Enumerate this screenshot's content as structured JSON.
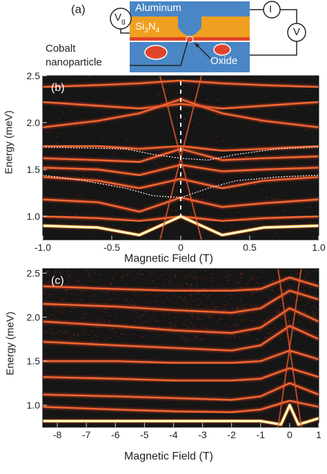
{
  "panel_a": {
    "label": "(a)",
    "aluminum": "Aluminum",
    "si3n4_main": "Si",
    "si3n4_sub3": "3",
    "si3n4_n": "N",
    "si3n4_sub4": "4",
    "vg": "V",
    "vg_sub": "g",
    "current": "I",
    "voltage": "V",
    "cobalt_line1": "Cobalt",
    "cobalt_line2": "nanoparticle",
    "oxide": "Oxide",
    "colors": {
      "aluminum_blue": "#4a86c5",
      "nitride_orange": "#f0a020",
      "particle_red": "#e0452a"
    }
  },
  "chart_data": [
    {
      "type": "heatmap",
      "panel_label": "(b)",
      "xlabel": "Magnetic Field (T)",
      "ylabel": "Energy (meV)",
      "xlim": [
        -1.0,
        1.0
      ],
      "ylim": [
        0.75,
        2.5
      ],
      "x_ticks": [
        "-1.0",
        "-0.5",
        "0",
        "0.5",
        "1.0"
      ],
      "x_tick_values": [
        -1.0,
        -0.5,
        0,
        0.5,
        1.0
      ],
      "y_ticks": [
        "1.0",
        "1.5",
        "2.0",
        "2.5"
      ],
      "y_tick_values": [
        1.0,
        1.5,
        2.0,
        2.5
      ],
      "grid": false,
      "colormap": [
        "#151515",
        "#b0301a",
        "#f06030",
        "#ffe060",
        "#ffffff"
      ],
      "levels": [
        {
          "x": [
            -1.0,
            -0.6,
            -0.3,
            0.0,
            0.3,
            0.6,
            1.0
          ],
          "y": [
            2.38,
            2.4,
            2.42,
            2.45,
            2.42,
            2.4,
            2.38
          ]
        },
        {
          "x": [
            -1.0,
            -0.6,
            -0.3,
            0.0,
            0.3,
            0.6,
            1.0
          ],
          "y": [
            2.22,
            2.18,
            2.15,
            2.2,
            2.15,
            2.18,
            2.22
          ]
        },
        {
          "x": [
            -1.0,
            -0.6,
            -0.3,
            0.0,
            0.3,
            0.6,
            1.0
          ],
          "y": [
            1.95,
            2.02,
            2.1,
            2.25,
            2.1,
            2.02,
            1.95
          ]
        },
        {
          "x": [
            -1.0,
            -0.6,
            -0.3,
            0.0,
            0.3,
            0.6,
            1.0
          ],
          "y": [
            1.75,
            1.75,
            1.72,
            1.75,
            1.7,
            1.72,
            1.75
          ]
        },
        {
          "x": [
            -1.0,
            -0.6,
            -0.3,
            0.0,
            0.3,
            0.6,
            1.0
          ],
          "y": [
            1.62,
            1.6,
            1.58,
            1.72,
            1.6,
            1.62,
            1.64
          ]
        },
        {
          "x": [
            -1.0,
            -0.6,
            -0.3,
            0.0,
            0.3,
            0.6,
            1.0
          ],
          "y": [
            1.52,
            1.5,
            1.44,
            1.55,
            1.48,
            1.5,
            1.52
          ]
        },
        {
          "x": [
            -1.0,
            -0.6,
            -0.3,
            0.0,
            0.3,
            0.6,
            1.0
          ],
          "y": [
            1.42,
            1.38,
            1.3,
            1.4,
            1.3,
            1.38,
            1.42
          ]
        },
        {
          "x": [
            -1.0,
            -0.6,
            -0.3,
            0.0,
            0.3,
            0.6,
            1.0
          ],
          "y": [
            1.18,
            1.15,
            1.05,
            1.2,
            1.1,
            1.14,
            1.18
          ]
        },
        {
          "x": [
            -1.0,
            -0.6,
            -0.3,
            0.0,
            0.3,
            0.6,
            1.0
          ],
          "y": [
            1.0,
            0.98,
            0.95,
            1.0,
            0.95,
            0.98,
            1.0
          ]
        },
        {
          "x": [
            -1.0,
            -0.6,
            -0.3,
            0.0,
            0.3,
            0.6,
            1.0
          ],
          "y": [
            0.9,
            0.88,
            0.8,
            1.0,
            0.8,
            0.88,
            0.9
          ]
        }
      ],
      "fit_curves": [
        {
          "x": [
            -1.0,
            -0.7,
            -0.4,
            -0.2,
            0.0,
            0.2,
            0.4,
            0.7,
            1.0
          ],
          "y": [
            1.74,
            1.73,
            1.72,
            1.66,
            1.62,
            1.6,
            1.66,
            1.72,
            1.74
          ]
        },
        {
          "x": [
            -1.0,
            -0.7,
            -0.4,
            -0.2,
            0.0,
            0.2,
            0.4,
            0.7,
            1.0
          ],
          "y": [
            1.44,
            1.38,
            1.3,
            1.22,
            1.2,
            1.3,
            1.38,
            1.42,
            1.44
          ]
        }
      ]
    },
    {
      "type": "heatmap",
      "panel_label": "(c)",
      "xlabel": "Magnetic Field (T)",
      "ylabel": "Energy (meV)",
      "xlim": [
        -8.5,
        1.0
      ],
      "ylim": [
        0.75,
        2.55
      ],
      "x_ticks": [
        "-8",
        "-7",
        "-6",
        "-5",
        "-4",
        "-3",
        "-2",
        "-1",
        "0",
        "1"
      ],
      "x_tick_values": [
        -8,
        -7,
        -6,
        -5,
        -4,
        -3,
        -2,
        -1,
        0,
        1
      ],
      "y_ticks": [
        "1.0",
        "1.5",
        "2.0",
        "2.5"
      ],
      "y_tick_values": [
        1.0,
        1.5,
        2.0,
        2.5
      ],
      "grid": false,
      "levels": [
        {
          "x": [
            -8.5,
            -6,
            -4,
            -2,
            -1,
            0,
            1
          ],
          "y": [
            2.35,
            2.32,
            2.3,
            2.3,
            2.32,
            2.45,
            2.35
          ]
        },
        {
          "x": [
            -8.5,
            -6,
            -4,
            -2,
            -1,
            0,
            1
          ],
          "y": [
            2.15,
            2.12,
            2.08,
            2.05,
            2.1,
            2.3,
            2.2
          ]
        },
        {
          "x": [
            -8.5,
            -6,
            -4,
            -2,
            -1,
            0,
            1
          ],
          "y": [
            1.95,
            1.9,
            1.85,
            1.82,
            1.88,
            2.1,
            1.95
          ]
        },
        {
          "x": [
            -8.5,
            -6,
            -4,
            -2,
            -1,
            0,
            1
          ],
          "y": [
            1.72,
            1.68,
            1.65,
            1.62,
            1.68,
            1.9,
            1.75
          ]
        },
        {
          "x": [
            -8.5,
            -6,
            -4,
            -2,
            -1,
            0,
            1
          ],
          "y": [
            1.5,
            1.5,
            1.48,
            1.48,
            1.5,
            1.62,
            1.52
          ]
        },
        {
          "x": [
            -8.5,
            -6,
            -4,
            -2,
            -1,
            0,
            1
          ],
          "y": [
            1.32,
            1.3,
            1.28,
            1.28,
            1.3,
            1.42,
            1.32
          ]
        },
        {
          "x": [
            -8.5,
            -6,
            -4,
            -2,
            -1,
            0,
            1
          ],
          "y": [
            1.12,
            1.1,
            1.08,
            1.06,
            1.1,
            1.25,
            1.12
          ]
        },
        {
          "x": [
            -8.5,
            -6,
            -4,
            -2,
            -1,
            0,
            1
          ],
          "y": [
            0.98,
            0.95,
            0.93,
            0.92,
            0.95,
            1.05,
            0.98
          ]
        },
        {
          "x": [
            -8.5,
            -6,
            -4,
            -2,
            -1,
            -0.3,
            0,
            0.3,
            1
          ],
          "y": [
            0.82,
            0.82,
            0.82,
            0.82,
            0.82,
            0.78,
            1.0,
            0.78,
            0.85
          ]
        }
      ]
    }
  ]
}
